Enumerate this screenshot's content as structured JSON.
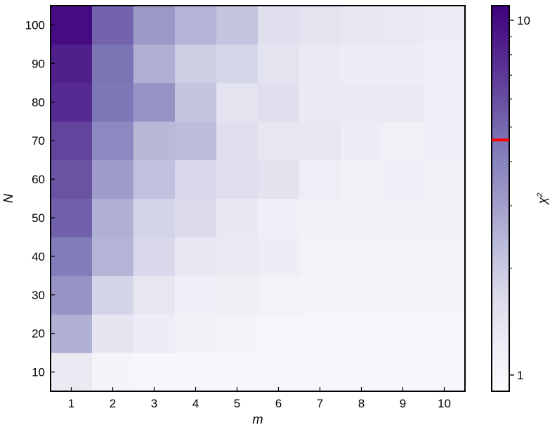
{
  "chart_data": {
    "type": "heatmap",
    "xlabel": "m",
    "ylabel": "N",
    "x": [
      1,
      2,
      3,
      4,
      5,
      6,
      7,
      8,
      9,
      10
    ],
    "y": [
      10,
      20,
      30,
      40,
      50,
      60,
      70,
      80,
      90,
      100
    ],
    "x_tick_labels": [
      "1",
      "2",
      "3",
      "4",
      "5",
      "6",
      "7",
      "8",
      "9",
      "10"
    ],
    "y_tick_labels": [
      "10",
      "20",
      "30",
      "40",
      "50",
      "60",
      "70",
      "80",
      "90",
      "100"
    ],
    "values_note": "rows ordered by N ascending (10..100), columns by m (1..10)",
    "values": [
      [
        1.3,
        1.05,
        1.0,
        1.0,
        1.0,
        1.0,
        1.0,
        1.0,
        1.0,
        1.0
      ],
      [
        2.6,
        1.4,
        1.25,
        1.12,
        1.08,
        1.03,
        1.02,
        1.02,
        1.02,
        1.02
      ],
      [
        3.4,
        1.8,
        1.38,
        1.2,
        1.17,
        1.1,
        1.08,
        1.07,
        1.07,
        1.07
      ],
      [
        4.3,
        2.5,
        1.7,
        1.35,
        1.3,
        1.25,
        1.1,
        1.1,
        1.1,
        1.1
      ],
      [
        5.3,
        2.6,
        1.8,
        1.65,
        1.35,
        1.2,
        1.15,
        1.12,
        1.12,
        1.12
      ],
      [
        5.8,
        3.1,
        2.2,
        1.7,
        1.55,
        1.48,
        1.22,
        1.15,
        1.2,
        1.15
      ],
      [
        6.5,
        3.8,
        2.4,
        2.3,
        1.55,
        1.38,
        1.38,
        1.25,
        1.15,
        1.2
      ],
      [
        7.8,
        4.5,
        3.4,
        2.1,
        1.45,
        1.55,
        1.3,
        1.3,
        1.3,
        1.22
      ],
      [
        8.6,
        4.6,
        2.6,
        1.9,
        1.75,
        1.45,
        1.3,
        1.25,
        1.25,
        1.22
      ],
      [
        10.0,
        5.2,
        3.2,
        2.5,
        2.1,
        1.55,
        1.45,
        1.38,
        1.32,
        1.25
      ]
    ],
    "colorbar": {
      "label": "χ²",
      "label_base": "χ",
      "label_sup": "2",
      "scale": "log",
      "range": [
        0.9,
        11
      ],
      "ticks": [
        {
          "value": 1,
          "label": "1"
        },
        {
          "value": 10,
          "label": "10"
        }
      ],
      "minor_ticks": [
        2,
        3,
        4,
        5,
        6,
        7,
        8,
        9
      ],
      "marker": {
        "value": 4.6,
        "color": "#ff0000"
      }
    },
    "colormap": "Purples",
    "grid": false
  }
}
